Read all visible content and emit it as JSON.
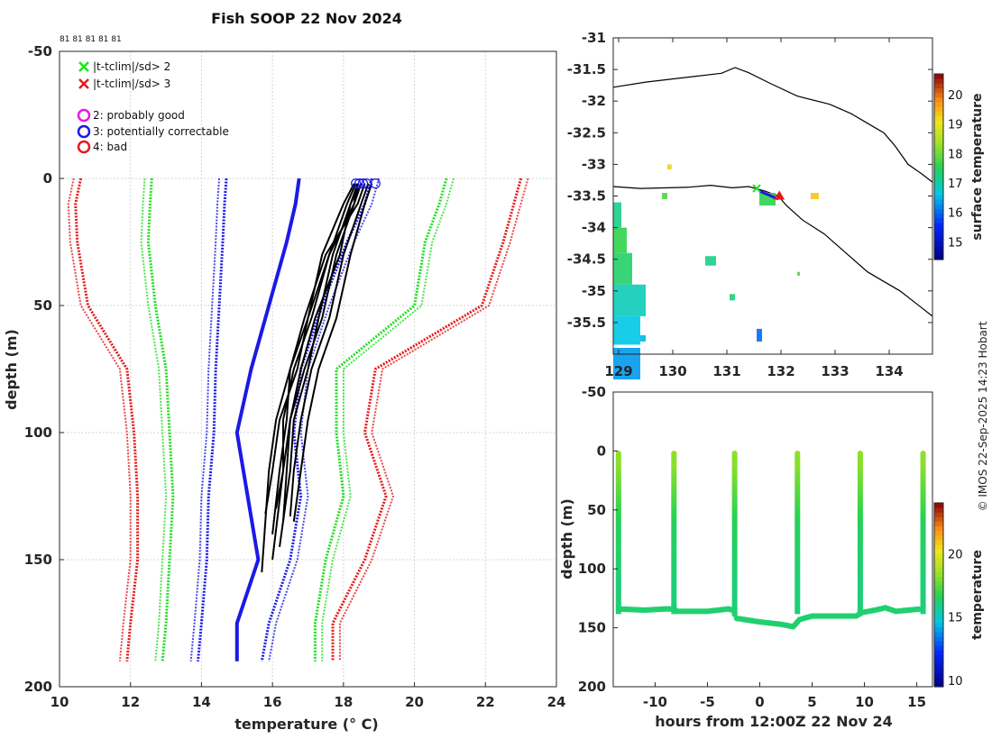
{
  "title": "Fish SOOP 22 Nov 2024",
  "copyright": "© IMOS 22-Sep-2025 14:23 Hobart",
  "chart_data": [
    {
      "type": "line",
      "name": "temperature-profiles",
      "xlabel": "temperature (° C)",
      "ylabel": "depth (m)",
      "xlim": [
        10,
        24
      ],
      "ylim": [
        -50,
        200
      ],
      "x_ticks": [
        "10",
        "12",
        "14",
        "16",
        "18",
        "20",
        "22",
        "24"
      ],
      "y_ticks": [
        "-50",
        "0",
        "50",
        "100",
        "150",
        "200"
      ],
      "top_labels": "81 81 81 81 81",
      "legend": [
        {
          "marker": "x",
          "color": "#19e619",
          "label": "|t-tclim|/sd> 2"
        },
        {
          "marker": "x",
          "color": "#e61919",
          "label": "|t-tclim|/sd> 3"
        },
        {
          "marker": "o",
          "color": "#e619e6",
          "label": "2: probably good"
        },
        {
          "marker": "o",
          "color": "#1a1ae6",
          "label": "3: potentially correctable"
        },
        {
          "marker": "o",
          "color": "#e61919",
          "label": "4: bad"
        }
      ],
      "climatology": {
        "depth": [
          0,
          10,
          25,
          50,
          75,
          100,
          125,
          150,
          175,
          190
        ],
        "mean": [
          16.75,
          16.65,
          16.4,
          15.9,
          15.4,
          15.0,
          15.3,
          15.6,
          15.0,
          15.0
        ],
        "plus1": [
          18.8,
          18.6,
          18.1,
          17.4,
          16.8,
          16.6,
          16.8,
          16.5,
          15.9,
          15.7
        ],
        "minus1": [
          14.7,
          14.65,
          14.6,
          14.5,
          14.4,
          14.35,
          14.2,
          14.15,
          14.0,
          13.9
        ],
        "plus2": [
          20.9,
          20.7,
          20.3,
          20.0,
          17.8,
          17.8,
          18.0,
          17.5,
          17.2,
          17.2
        ],
        "minus2": [
          12.6,
          12.55,
          12.5,
          12.7,
          13.0,
          13.1,
          13.2,
          13.1,
          13.0,
          12.9
        ],
        "plus3": [
          23.0,
          22.8,
          22.5,
          21.9,
          18.9,
          18.6,
          19.2,
          18.6,
          17.7,
          17.7
        ],
        "minus3": [
          10.6,
          10.45,
          10.5,
          10.8,
          11.9,
          12.1,
          12.2,
          12.2,
          12.0,
          11.9
        ]
      },
      "profiles": [
        {
          "temp": [
            18.4,
            18.3,
            17.6,
            17.1,
            16.6,
            16.3,
            16.3,
            16.1
          ],
          "depth": [
            2,
            10,
            30,
            55,
            75,
            95,
            115,
            130
          ]
        },
        {
          "temp": [
            18.5,
            18.2,
            17.9,
            17.2,
            16.8,
            16.5,
            16.4,
            16.3
          ],
          "depth": [
            2,
            10,
            30,
            55,
            75,
            95,
            115,
            135
          ]
        },
        {
          "temp": [
            18.6,
            18.4,
            17.5,
            16.9,
            16.5,
            16.4,
            16.2,
            16.0
          ],
          "depth": [
            2,
            10,
            30,
            55,
            75,
            95,
            115,
            140
          ]
        },
        {
          "temp": [
            18.3,
            18.0,
            17.4,
            17.0,
            16.7,
            16.2,
            16.0,
            15.8
          ],
          "depth": [
            2,
            10,
            30,
            55,
            75,
            95,
            115,
            132
          ]
        },
        {
          "temp": [
            18.7,
            18.5,
            18.0,
            17.6,
            17.1,
            16.8,
            16.6,
            16.5
          ],
          "depth": [
            2,
            10,
            30,
            55,
            75,
            95,
            115,
            133
          ]
        },
        {
          "temp": [
            18.4,
            18.2,
            17.7,
            17.3,
            17.0,
            16.6,
            16.5,
            16.2
          ],
          "depth": [
            2,
            10,
            30,
            55,
            75,
            95,
            115,
            145
          ]
        },
        {
          "temp": [
            18.5,
            18.3,
            17.8,
            17.4,
            16.9,
            16.5,
            16.3,
            16.0
          ],
          "depth": [
            2,
            10,
            30,
            55,
            75,
            95,
            115,
            150
          ]
        },
        {
          "temp": [
            18.8,
            18.6,
            18.2,
            17.8,
            17.3,
            17.0,
            16.8,
            16.6
          ],
          "depth": [
            2,
            10,
            30,
            55,
            75,
            95,
            115,
            135
          ]
        },
        {
          "temp": [
            18.35,
            18.1,
            17.6,
            17.0,
            16.5,
            16.1,
            15.9,
            15.7
          ],
          "depth": [
            2,
            10,
            30,
            55,
            75,
            95,
            115,
            155
          ]
        }
      ],
      "surface_flags_temp": [
        18.35,
        18.45,
        18.55,
        18.65,
        18.9
      ]
    },
    {
      "type": "heatmap",
      "name": "surface-temperature-map",
      "xlim": [
        128.9,
        134.8
      ],
      "ylim": [
        -36.0,
        -31.0
      ],
      "x_ticks": [
        "129",
        "130",
        "131",
        "132",
        "133",
        "134"
      ],
      "y_ticks": [
        "-31",
        "-31.5",
        "-32",
        "-32.5",
        "-33",
        "-33.5",
        "-34",
        "-34.5",
        "-35",
        "-35.5"
      ],
      "colorbar_label": "surface temperature",
      "colorbar_ticks": [
        "15",
        "16",
        "17",
        "18",
        "19",
        "20"
      ],
      "colorbar_range": [
        14.4,
        20.7
      ]
    },
    {
      "type": "scatter",
      "name": "depth-time-section",
      "xlabel": "hours from 12:00Z 22 Nov 24",
      "ylabel": "depth (m)",
      "xlim": [
        -14,
        16.5
      ],
      "ylim": [
        -50,
        200
      ],
      "x_ticks": [
        "-10",
        "-5",
        "0",
        "5",
        "10",
        "15"
      ],
      "y_ticks": [
        "-50",
        "0",
        "50",
        "100",
        "150",
        "200"
      ],
      "colorbar_label": "temperature",
      "colorbar_ticks": [
        "10",
        "15",
        "20"
      ],
      "colorbar_range": [
        9.5,
        24
      ],
      "casts_hours": [
        -13.5,
        -8.2,
        -2.4,
        3.6,
        9.6,
        15.6
      ]
    }
  ]
}
